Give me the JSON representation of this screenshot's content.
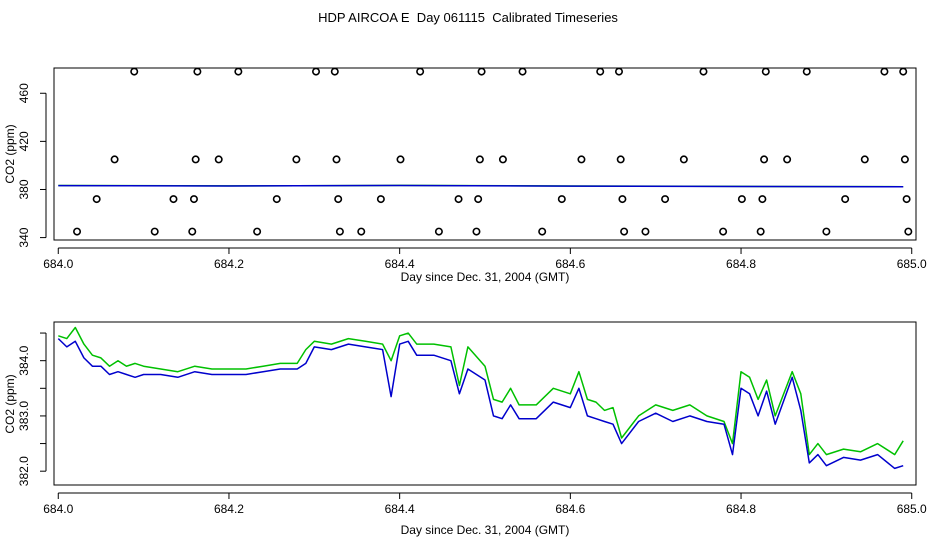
{
  "figure_title": "HDP AIRCOA E  Day 061115  Calibrated Timeseries",
  "chart_data": [
    {
      "type": "scatter+line",
      "xlabel": "Day since Dec. 31, 2004 (GMT)",
      "ylabel": "CO2 (ppm)",
      "xlim": [
        683.995,
        685.005
      ],
      "ylim": [
        338,
        481
      ],
      "x_ticks": [
        684.0,
        684.2,
        684.4,
        684.6,
        684.8,
        685.0
      ],
      "x_tick_labels": [
        "684.0",
        "684.2",
        "684.4",
        "684.6",
        "684.8",
        "685.0"
      ],
      "y_ticks": [
        340,
        380,
        420,
        460
      ],
      "y_tick_labels": [
        "340",
        "380",
        "420",
        "460"
      ],
      "colors": {
        "green": "#00c000",
        "blue": "#0000cc",
        "points": "#000000"
      },
      "points": [
        {
          "x": 684.022,
          "y": 345
        },
        {
          "x": 684.045,
          "y": 372
        },
        {
          "x": 684.066,
          "y": 405
        },
        {
          "x": 684.089,
          "y": 478
        },
        {
          "x": 684.113,
          "y": 345
        },
        {
          "x": 684.135,
          "y": 372
        },
        {
          "x": 684.157,
          "y": 345
        },
        {
          "x": 684.159,
          "y": 372
        },
        {
          "x": 684.161,
          "y": 405
        },
        {
          "x": 684.163,
          "y": 478
        },
        {
          "x": 684.188,
          "y": 405
        },
        {
          "x": 684.211,
          "y": 478
        },
        {
          "x": 684.233,
          "y": 345
        },
        {
          "x": 684.256,
          "y": 372
        },
        {
          "x": 684.279,
          "y": 405
        },
        {
          "x": 684.302,
          "y": 478
        },
        {
          "x": 684.324,
          "y": 478
        },
        {
          "x": 684.326,
          "y": 405
        },
        {
          "x": 684.328,
          "y": 372
        },
        {
          "x": 684.33,
          "y": 345
        },
        {
          "x": 684.355,
          "y": 345
        },
        {
          "x": 684.378,
          "y": 372
        },
        {
          "x": 684.401,
          "y": 405
        },
        {
          "x": 684.424,
          "y": 478
        },
        {
          "x": 684.446,
          "y": 345
        },
        {
          "x": 684.469,
          "y": 372
        },
        {
          "x": 684.49,
          "y": 345
        },
        {
          "x": 684.492,
          "y": 372
        },
        {
          "x": 684.494,
          "y": 405
        },
        {
          "x": 684.496,
          "y": 478
        },
        {
          "x": 684.521,
          "y": 405
        },
        {
          "x": 684.544,
          "y": 478
        },
        {
          "x": 684.567,
          "y": 345
        },
        {
          "x": 684.59,
          "y": 372
        },
        {
          "x": 684.613,
          "y": 405
        },
        {
          "x": 684.635,
          "y": 478
        },
        {
          "x": 684.657,
          "y": 478
        },
        {
          "x": 684.659,
          "y": 405
        },
        {
          "x": 684.661,
          "y": 372
        },
        {
          "x": 684.663,
          "y": 345
        },
        {
          "x": 684.688,
          "y": 345
        },
        {
          "x": 684.711,
          "y": 372
        },
        {
          "x": 684.733,
          "y": 405
        },
        {
          "x": 684.756,
          "y": 478
        },
        {
          "x": 684.779,
          "y": 345
        },
        {
          "x": 684.801,
          "y": 372
        },
        {
          "x": 684.823,
          "y": 345
        },
        {
          "x": 684.825,
          "y": 372
        },
        {
          "x": 684.827,
          "y": 405
        },
        {
          "x": 684.829,
          "y": 478
        },
        {
          "x": 684.854,
          "y": 405
        },
        {
          "x": 684.877,
          "y": 478
        },
        {
          "x": 684.9,
          "y": 345
        },
        {
          "x": 684.922,
          "y": 372
        },
        {
          "x": 684.945,
          "y": 405
        },
        {
          "x": 684.968,
          "y": 478
        },
        {
          "x": 684.99,
          "y": 478
        },
        {
          "x": 684.992,
          "y": 405
        },
        {
          "x": 684.994,
          "y": 372
        },
        {
          "x": 684.996,
          "y": 345
        }
      ],
      "series": [
        {
          "name": "green",
          "x": [
            684.0,
            684.2,
            684.4,
            684.6,
            684.8,
            684.99
          ],
          "y": [
            383.3,
            383.0,
            383.4,
            382.9,
            382.6,
            382.3
          ]
        },
        {
          "name": "blue",
          "x": [
            684.0,
            684.2,
            684.4,
            684.6,
            684.8,
            684.99
          ],
          "y": [
            383.2,
            382.9,
            383.3,
            382.8,
            382.5,
            382.2
          ]
        }
      ]
    },
    {
      "type": "line",
      "xlabel": "Day since Dec. 31, 2004 (GMT)",
      "ylabel": "CO2 (ppm)",
      "xlim": [
        683.995,
        685.005
      ],
      "ylim": [
        381.75,
        384.7
      ],
      "x_ticks": [
        684.0,
        684.2,
        684.4,
        684.6,
        684.8,
        685.0
      ],
      "x_tick_labels": [
        "684.0",
        "684.2",
        "684.4",
        "684.6",
        "684.8",
        "685.0"
      ],
      "y_ticks": [
        382.0,
        383.0,
        384.0
      ],
      "y_tick_labels": [
        "382.0",
        "383.0",
        "384.0"
      ],
      "y_tick_minor": [
        382.5,
        383.5,
        384.5
      ],
      "colors": {
        "green": "#00c000",
        "blue": "#0000cc"
      },
      "series": [
        {
          "name": "green",
          "x": [
            684.0,
            684.01,
            684.02,
            684.03,
            684.04,
            684.05,
            684.06,
            684.07,
            684.08,
            684.09,
            684.1,
            684.12,
            684.14,
            684.16,
            684.18,
            684.2,
            684.22,
            684.24,
            684.26,
            684.28,
            684.29,
            684.3,
            684.32,
            684.34,
            684.36,
            684.38,
            684.39,
            684.4,
            684.41,
            684.42,
            684.44,
            684.46,
            684.47,
            684.48,
            684.5,
            684.51,
            684.52,
            684.53,
            684.54,
            684.56,
            684.58,
            684.6,
            684.61,
            684.62,
            684.63,
            684.64,
            684.65,
            684.66,
            684.68,
            684.7,
            684.72,
            684.74,
            684.76,
            684.78,
            684.79,
            684.8,
            684.81,
            684.82,
            684.83,
            684.84,
            684.86,
            684.87,
            684.88,
            684.89,
            684.9,
            684.92,
            684.94,
            684.96,
            684.98,
            684.99
          ],
          "y": [
            384.45,
            384.4,
            384.6,
            384.3,
            384.1,
            384.05,
            383.9,
            384.0,
            383.9,
            383.95,
            383.9,
            383.85,
            383.8,
            383.9,
            383.85,
            383.85,
            383.85,
            383.9,
            383.95,
            383.95,
            384.2,
            384.35,
            384.3,
            384.4,
            384.35,
            384.3,
            384.0,
            384.45,
            384.5,
            384.3,
            384.3,
            384.25,
            383.55,
            384.25,
            383.9,
            383.3,
            383.25,
            383.5,
            383.2,
            383.2,
            383.5,
            383.4,
            383.8,
            383.3,
            383.25,
            383.1,
            383.15,
            382.6,
            383.0,
            383.2,
            383.1,
            383.2,
            383.0,
            382.9,
            382.5,
            383.8,
            383.7,
            383.3,
            383.65,
            383.0,
            383.8,
            383.4,
            382.3,
            382.5,
            382.3,
            382.4,
            382.35,
            382.5,
            382.3,
            382.55
          ]
        },
        {
          "name": "blue",
          "x": [
            684.0,
            684.01,
            684.02,
            684.03,
            684.04,
            684.05,
            684.06,
            684.07,
            684.08,
            684.09,
            684.1,
            684.12,
            684.14,
            684.16,
            684.18,
            684.2,
            684.22,
            684.24,
            684.26,
            684.28,
            684.29,
            684.3,
            684.32,
            684.34,
            684.36,
            684.38,
            684.39,
            684.4,
            684.41,
            684.42,
            684.44,
            684.46,
            684.47,
            684.48,
            684.5,
            684.51,
            684.52,
            684.53,
            684.54,
            684.56,
            684.58,
            684.6,
            684.61,
            684.62,
            684.63,
            684.64,
            684.65,
            684.66,
            684.68,
            684.7,
            684.72,
            684.74,
            684.76,
            684.78,
            684.79,
            684.8,
            684.81,
            684.82,
            684.83,
            684.84,
            684.86,
            684.87,
            684.88,
            684.89,
            684.9,
            684.92,
            684.94,
            684.96,
            684.98,
            684.99
          ],
          "y": [
            384.4,
            384.25,
            384.35,
            384.05,
            383.9,
            383.9,
            383.75,
            383.8,
            383.75,
            383.7,
            383.75,
            383.75,
            383.7,
            383.8,
            383.75,
            383.75,
            383.75,
            383.8,
            383.85,
            383.85,
            383.95,
            384.25,
            384.2,
            384.3,
            384.25,
            384.2,
            383.35,
            384.3,
            384.35,
            384.1,
            384.1,
            384.0,
            383.4,
            383.85,
            383.65,
            383.0,
            382.95,
            383.2,
            382.95,
            382.95,
            383.25,
            383.15,
            383.5,
            383.0,
            382.95,
            382.9,
            382.85,
            382.5,
            382.9,
            383.05,
            382.9,
            383.0,
            382.9,
            382.85,
            382.3,
            383.5,
            383.4,
            383.0,
            383.45,
            382.85,
            383.7,
            383.1,
            382.15,
            382.3,
            382.1,
            382.25,
            382.2,
            382.3,
            382.05,
            382.1
          ]
        }
      ]
    }
  ]
}
